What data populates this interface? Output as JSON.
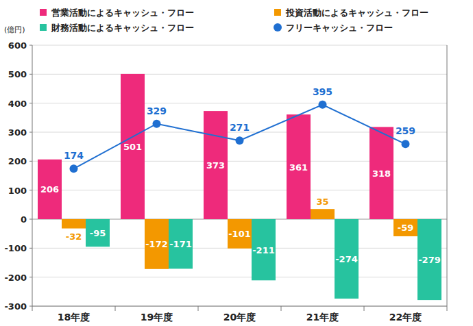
{
  "chart_data": {
    "type": "bar",
    "y_label": "(億円)",
    "categories": [
      "18年度",
      "19年度",
      "20年度",
      "21年度",
      "22年度"
    ],
    "series": [
      {
        "name": "営業活動によるキャッシュ・フロー",
        "color": "#ee2a7b",
        "values": [
          206,
          501,
          373,
          361,
          318
        ]
      },
      {
        "name": "投資活動によるキャッシュ・フロー",
        "color": "#f39800",
        "values": [
          -32,
          -172,
          -101,
          35,
          -59
        ]
      },
      {
        "name": "財務活動によるキャッシュ・フロー",
        "color": "#27c39f",
        "values": [
          -95,
          -171,
          -211,
          -274,
          -279
        ]
      },
      {
        "name": "フリーキャッシュ・フロー",
        "color": "#1f6fd1",
        "type": "line",
        "marker": "circle",
        "values": [
          174,
          329,
          271,
          395,
          259
        ]
      }
    ],
    "ylim": [
      -300,
      600
    ],
    "yticks": [
      -300,
      -200,
      -100,
      0,
      100,
      200,
      300,
      400,
      500,
      600
    ],
    "grid": true,
    "legend": "top",
    "data_labels": true
  }
}
